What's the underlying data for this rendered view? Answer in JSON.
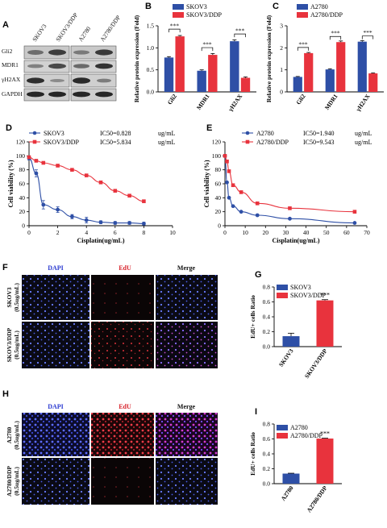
{
  "panels": {
    "A": {
      "letter": "A",
      "lanes_left": [
        "SKOV3",
        "SKOV3/DDP"
      ],
      "lanes_right": [
        "A2780",
        "A2780/DDP"
      ],
      "rows": [
        "Gli2",
        "MDR1",
        "γH2AX",
        "GAPDH"
      ]
    },
    "B": {
      "letter": "B",
      "chart_data": {
        "type": "bar",
        "categories": [
          "Gli2",
          "MDR1",
          "γH2AX"
        ],
        "series": [
          {
            "name": "SKOV3",
            "values": [
              0.78,
              0.48,
              1.15
            ],
            "errors": [
              0.02,
              0.02,
              0.03
            ]
          },
          {
            "name": "SKOV3/DDP",
            "values": [
              1.26,
              0.84,
              0.32
            ],
            "errors": [
              0.02,
              0.03,
              0.02
            ]
          }
        ],
        "ylabel": "Relative protein expression (Fold)",
        "ylim": [
          0,
          1.5
        ],
        "yticks": [
          "0.0",
          "0.5",
          "1.0",
          "1.5"
        ],
        "significance": [
          "***",
          "***",
          "***"
        ],
        "legend_position": "top-left",
        "colors": [
          "#2e4fa6",
          "#e8333d"
        ]
      }
    },
    "C": {
      "letter": "C",
      "chart_data": {
        "type": "bar",
        "categories": [
          "Gli2",
          "MDR1",
          "γH2AX"
        ],
        "series": [
          {
            "name": "A2780",
            "values": [
              0.68,
              1.02,
              2.28
            ],
            "errors": [
              0.02,
              0.03,
              0.05
            ]
          },
          {
            "name": "A2780/DDP",
            "values": [
              1.76,
              2.26,
              0.84
            ],
            "errors": [
              0.03,
              0.05,
              0.02
            ]
          }
        ],
        "ylabel": "Relative protein expression (Fold)",
        "ylim": [
          0,
          3
        ],
        "yticks": [
          "0",
          "1",
          "2",
          "3"
        ],
        "significance": [
          "***",
          "***",
          "***"
        ],
        "legend_position": "top-left",
        "colors": [
          "#2e4fa6",
          "#e8333d"
        ]
      }
    },
    "D": {
      "letter": "D",
      "chart_data": {
        "type": "scatter",
        "series": [
          {
            "name": "SKOV3",
            "ic50": "IC50=0.828",
            "unit": "ug/mL",
            "marker": "circle",
            "x": [
              0,
              0.5,
              1,
              2,
              3,
              4,
              5,
              6,
              7,
              8
            ],
            "y": [
              97,
              75,
              30,
              23,
              13,
              8,
              5,
              4,
              4,
              3
            ],
            "errors": [
              3,
              5,
              6,
              4,
              3,
              4,
              2,
              2,
              2,
              2
            ]
          },
          {
            "name": "SKOV3/DDP",
            "ic50": "IC50=5.834",
            "unit": "ug/mL",
            "marker": "square",
            "x": [
              0,
              0.5,
              1,
              2,
              3,
              4,
              5,
              6,
              7,
              8
            ],
            "y": [
              98,
              93,
              90,
              86,
              80,
              72,
              62,
              50,
              43,
              35
            ]
          }
        ],
        "xlabel": "Cisplatin(ug/mL)",
        "ylabel": "Cell viability (%)",
        "xlim": [
          0,
          10
        ],
        "ylim": [
          0,
          120
        ],
        "xticks": [
          0,
          2,
          4,
          6,
          8,
          10
        ],
        "yticks": [
          0,
          20,
          40,
          60,
          80,
          100,
          120
        ],
        "legend_position": "top",
        "colors": [
          "#2e4fa6",
          "#e8333d"
        ]
      }
    },
    "E": {
      "letter": "E",
      "chart_data": {
        "type": "scatter",
        "series": [
          {
            "name": "A2780",
            "ic50": "IC50=1.940",
            "unit": "ug/mL",
            "marker": "circle",
            "x": [
              0,
              1,
              2,
              4,
              8,
              16,
              32,
              64
            ],
            "y": [
              100,
              62,
              40,
              28,
              20,
              15,
              10,
              4
            ]
          },
          {
            "name": "A2780/DDP",
            "ic50": "IC50=9.543",
            "unit": "ug/mL",
            "marker": "square",
            "x": [
              0,
              1,
              2,
              4,
              8,
              16,
              32,
              64
            ],
            "y": [
              100,
              92,
              78,
              58,
              48,
              32,
              25,
              20
            ]
          }
        ],
        "xlabel": "Cisplatin(ug/mL)",
        "ylabel": "Cell viability (%)",
        "xlim": [
          0,
          70
        ],
        "ylim": [
          0,
          120
        ],
        "xticks": [
          0,
          10,
          20,
          30,
          40,
          50,
          60,
          70
        ],
        "yticks": [
          0,
          20,
          40,
          60,
          80,
          100,
          120
        ],
        "legend_position": "top",
        "colors": [
          "#2e4fa6",
          "#e8333d"
        ]
      }
    },
    "F": {
      "letter": "F",
      "columns": [
        "DAPI",
        "EdU",
        "Merge"
      ],
      "rows": [
        {
          "name": "SKOV3",
          "dose": "(0.5ug/mL)"
        },
        {
          "name": "SKOV3/DDP",
          "dose": "(0.5ug/mL)"
        }
      ],
      "column_colors": [
        "#2b3bd1",
        "#d8222b",
        "#222"
      ]
    },
    "G": {
      "letter": "G",
      "chart_data": {
        "type": "bar",
        "categories": [
          "SKOV3",
          "SKOV3/DDP"
        ],
        "values": [
          0.14,
          0.62
        ],
        "errors": [
          0.04,
          0.01
        ],
        "ylabel": "EdU+ cells Ratio",
        "ylim": [
          0,
          0.8
        ],
        "yticks": [
          "0.0",
          "0.2",
          "0.4",
          "0.6",
          "0.8"
        ],
        "significance": "***",
        "legend": [
          "SKOV3",
          "SKOV3/DDP"
        ],
        "legend_position": "top-left",
        "colors": [
          "#2e4fa6",
          "#e8333d"
        ]
      }
    },
    "H": {
      "letter": "H",
      "columns": [
        "DAPI",
        "EdU",
        "Merge"
      ],
      "rows": [
        {
          "name": "A2780",
          "dose": "(0.5ug/mL)"
        },
        {
          "name": "A2780/DDP",
          "dose": "(0.5ug/mL)"
        }
      ],
      "column_colors": [
        "#2b3bd1",
        "#d8222b",
        "#222"
      ]
    },
    "I": {
      "letter": "I",
      "chart_data": {
        "type": "bar",
        "categories": [
          "A2780",
          "A2780/DDP"
        ],
        "values": [
          0.135,
          0.605
        ],
        "errors": [
          0.005,
          0.005
        ],
        "ylabel": "EdU+ cells Ratio",
        "ylim": [
          0,
          0.8
        ],
        "yticks": [
          "0.0",
          "0.2",
          "0.4",
          "0.6",
          "0.8"
        ],
        "significance": "***",
        "legend": [
          "A2780",
          "A2780/DDP"
        ],
        "legend_position": "top-left",
        "colors": [
          "#2e4fa6",
          "#e8333d"
        ]
      }
    }
  }
}
